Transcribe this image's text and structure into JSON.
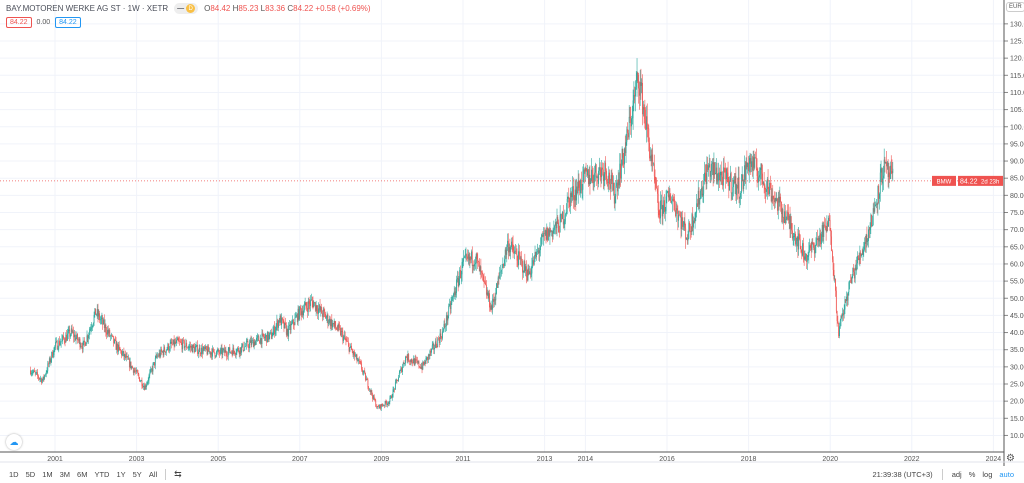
{
  "header": {
    "symbol": "BAY.MOTOREN WERKE AG ST · 1W · XETR",
    "badge_dash": "—",
    "badge_d": "D",
    "o_label": "O",
    "o": "84.42",
    "h_label": "H",
    "h": "85.23",
    "l_label": "L",
    "l": "83.36",
    "c_label": "C",
    "c": "84.22",
    "change": "+0.58 (+0.69%)",
    "bid": "84.22",
    "spread": "0.00",
    "ask": "84.22"
  },
  "currency": "EUR",
  "price_label": {
    "ticker": "BMW",
    "price": "84.22",
    "countdown": "2d 23h"
  },
  "bottom": {
    "ranges": [
      "1D",
      "5D",
      "1M",
      "3M",
      "6M",
      "YTD",
      "1Y",
      "5Y",
      "All"
    ],
    "time": "21:39:38 (UTC+3)",
    "adj": "adj",
    "pct": "%",
    "log": "log",
    "auto": "auto"
  },
  "colors": {
    "up": "#26a69a",
    "down": "#ef5350",
    "accent": "#2196f3"
  },
  "chart_data": {
    "type": "candlestick",
    "title": "BAY.MOTOREN WERKE AG ST · 1W · XETR",
    "x_ticks": [
      2001,
      2003,
      2005,
      2007,
      2009,
      2011,
      2013,
      2014,
      2016,
      2018,
      2020,
      2022,
      2024
    ],
    "y_ticks": [
      10,
      15,
      20,
      25,
      30,
      35,
      40,
      45,
      50,
      55,
      60,
      65,
      70,
      75,
      80,
      85,
      90,
      95,
      100,
      105,
      110,
      115,
      120,
      125,
      130
    ],
    "ylim": [
      8,
      133
    ],
    "xlim": [
      2000.35,
      2025.1
    ],
    "last_price": 84.22,
    "approx_close_path": [
      [
        2000.4,
        29
      ],
      [
        2000.7,
        26
      ],
      [
        2001.0,
        36
      ],
      [
        2001.4,
        40
      ],
      [
        2001.7,
        36
      ],
      [
        2002.0,
        46
      ],
      [
        2002.2,
        42
      ],
      [
        2002.5,
        36
      ],
      [
        2002.7,
        33
      ],
      [
        2003.0,
        28
      ],
      [
        2003.2,
        24
      ],
      [
        2003.5,
        33
      ],
      [
        2003.8,
        36
      ],
      [
        2004.0,
        37
      ],
      [
        2004.5,
        35
      ],
      [
        2005.0,
        34
      ],
      [
        2005.5,
        35
      ],
      [
        2006.0,
        38
      ],
      [
        2006.3,
        39
      ],
      [
        2006.5,
        44
      ],
      [
        2006.7,
        40
      ],
      [
        2007.0,
        46
      ],
      [
        2007.3,
        49
      ],
      [
        2007.6,
        45
      ],
      [
        2008.0,
        40
      ],
      [
        2008.5,
        30
      ],
      [
        2008.9,
        18
      ],
      [
        2009.2,
        20
      ],
      [
        2009.6,
        33
      ],
      [
        2010.0,
        30
      ],
      [
        2010.5,
        40
      ],
      [
        2011.0,
        60
      ],
      [
        2011.3,
        62
      ],
      [
        2011.7,
        47
      ],
      [
        2012.1,
        66
      ],
      [
        2012.6,
        57
      ],
      [
        2013.0,
        68
      ],
      [
        2013.4,
        72
      ],
      [
        2013.6,
        79
      ],
      [
        2014.0,
        85
      ],
      [
        2014.5,
        88
      ],
      [
        2014.7,
        80
      ],
      [
        2015.0,
        95
      ],
      [
        2015.3,
        115
      ],
      [
        2015.5,
        100
      ],
      [
        2015.8,
        75
      ],
      [
        2016.1,
        80
      ],
      [
        2016.5,
        68
      ],
      [
        2016.8,
        80
      ],
      [
        2017.0,
        88
      ],
      [
        2017.4,
        85
      ],
      [
        2017.8,
        82
      ],
      [
        2018.0,
        90
      ],
      [
        2018.3,
        86
      ],
      [
        2018.6,
        80
      ],
      [
        2019.0,
        72
      ],
      [
        2019.4,
        62
      ],
      [
        2019.7,
        67
      ],
      [
        2020.0,
        72
      ],
      [
        2020.2,
        40
      ],
      [
        2020.5,
        55
      ],
      [
        2020.9,
        68
      ],
      [
        2021.0,
        72
      ],
      [
        2021.3,
        88
      ],
      [
        2021.55,
        84.22
      ]
    ]
  }
}
